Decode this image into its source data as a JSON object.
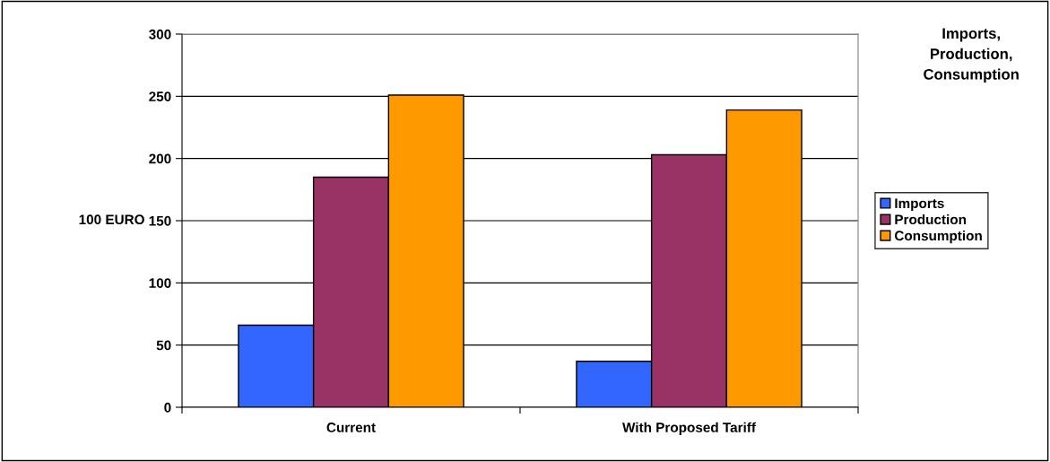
{
  "chart_data": {
    "type": "bar",
    "title": "Imports,\nProduction,\nConsumption",
    "ylabel": "100 EURO",
    "categories": [
      "Current",
      "With Proposed Tariff"
    ],
    "series": [
      {
        "name": "Imports",
        "color": "#3366ff",
        "values": [
          66,
          37
        ]
      },
      {
        "name": "Production",
        "color": "#993366",
        "values": [
          185,
          203
        ]
      },
      {
        "name": "Consumption",
        "color": "#ff9900",
        "values": [
          251,
          239
        ]
      }
    ],
    "ylim": [
      0,
      300
    ],
    "yticks": [
      0,
      50,
      100,
      150,
      200,
      250,
      300
    ],
    "grid": "y",
    "legend": "right"
  }
}
